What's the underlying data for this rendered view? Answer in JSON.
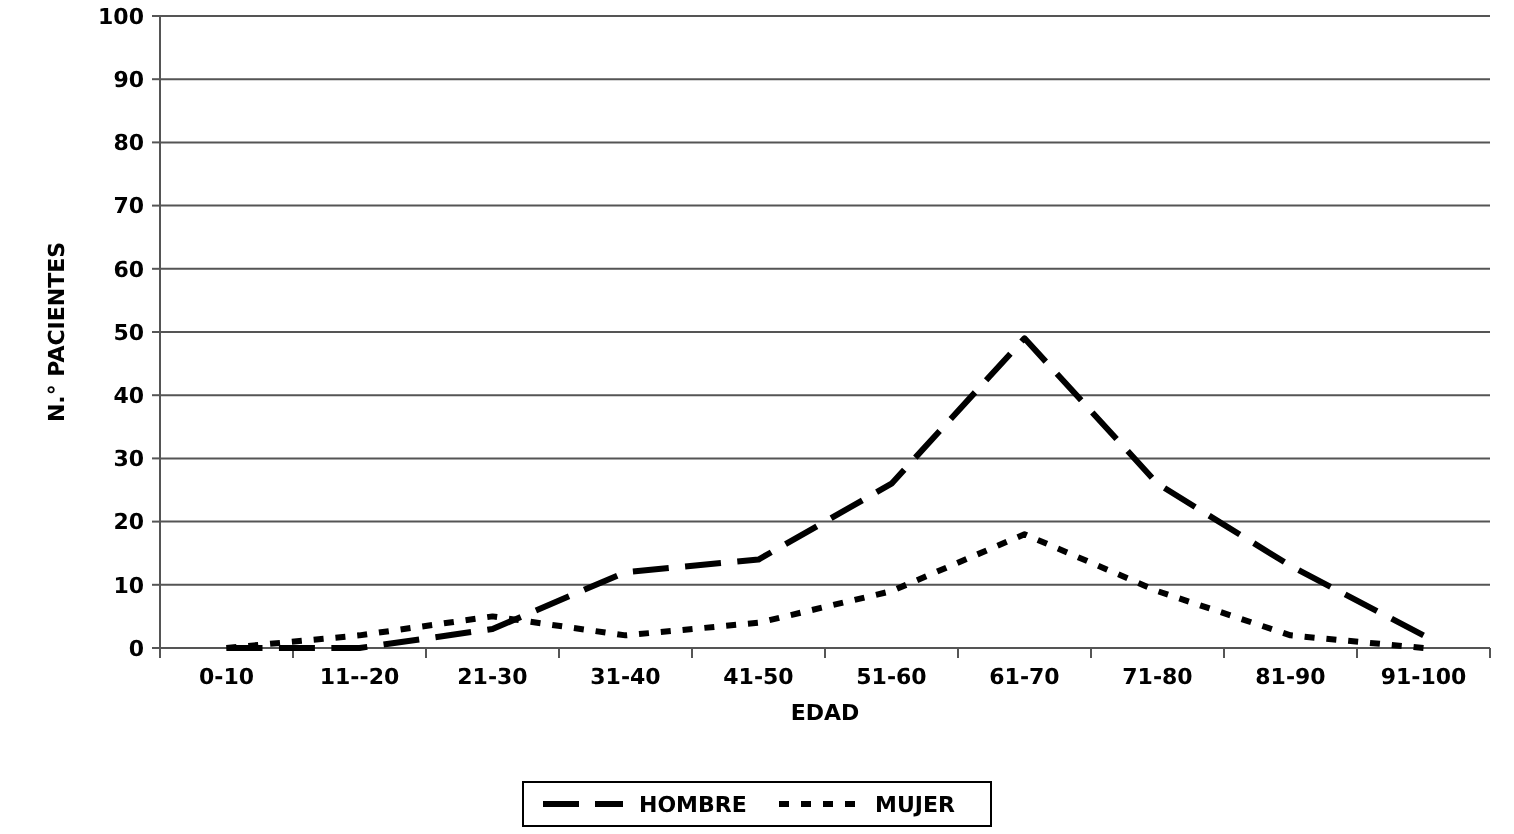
{
  "chart_data": {
    "type": "line",
    "xlabel": "EDAD",
    "ylabel": "N.° PACIENTES",
    "categories": [
      "0-10",
      "11--20",
      "21-30",
      "31-40",
      "41-50",
      "51-60",
      "61-70",
      "71-80",
      "81-90",
      "91-100"
    ],
    "series": [
      {
        "name": "HOMBRE",
        "color": "#000000",
        "line_style": "dashed",
        "values": [
          0,
          0,
          3,
          12,
          14,
          26,
          49,
          26,
          13,
          2
        ]
      },
      {
        "name": "MUJER",
        "color": "#000000",
        "line_style": "dotted",
        "values": [
          0,
          2,
          5,
          2,
          4,
          9,
          18,
          9,
          2,
          0
        ]
      }
    ],
    "ylim": [
      0,
      100
    ],
    "yticks": [
      0,
      10,
      20,
      30,
      40,
      50,
      60,
      70,
      80,
      90,
      100
    ],
    "grid": "y",
    "legend": "bottom",
    "marker": "none"
  }
}
